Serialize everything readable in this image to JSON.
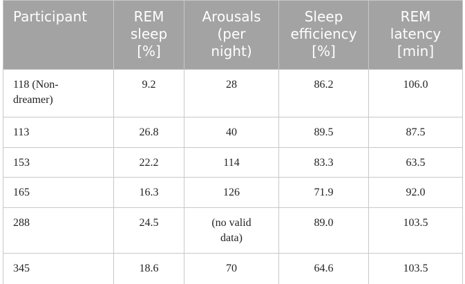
{
  "table": {
    "header": [
      [
        "Participant"
      ],
      [
        "REM",
        "sleep",
        "[%]"
      ],
      [
        "Arousals",
        "(per",
        "night)"
      ],
      [
        "Sleep",
        "efficiency",
        "[%]"
      ],
      [
        "REM",
        "latency",
        "[min]"
      ]
    ],
    "rows": [
      [
        [
          "118 (Non-",
          "dreamer)"
        ],
        [
          "9.2"
        ],
        [
          "28"
        ],
        [
          "86.2"
        ],
        [
          "106.0"
        ]
      ],
      [
        [
          "113"
        ],
        [
          "26.8"
        ],
        [
          "40"
        ],
        [
          "89.5"
        ],
        [
          "87.5"
        ]
      ],
      [
        [
          "153"
        ],
        [
          "22.2"
        ],
        [
          "114"
        ],
        [
          "83.3"
        ],
        [
          "63.5"
        ]
      ],
      [
        [
          "165"
        ],
        [
          "16.3"
        ],
        [
          "126"
        ],
        [
          "71.9"
        ],
        [
          "92.0"
        ]
      ],
      [
        [
          "288"
        ],
        [
          "24.5"
        ],
        [
          "(no valid",
          "data)"
        ],
        [
          "89.0"
        ],
        [
          "103.5"
        ]
      ],
      [
        [
          "345"
        ],
        [
          "18.6"
        ],
        [
          "70"
        ],
        [
          "64.6"
        ],
        [
          "103.5"
        ]
      ]
    ]
  }
}
